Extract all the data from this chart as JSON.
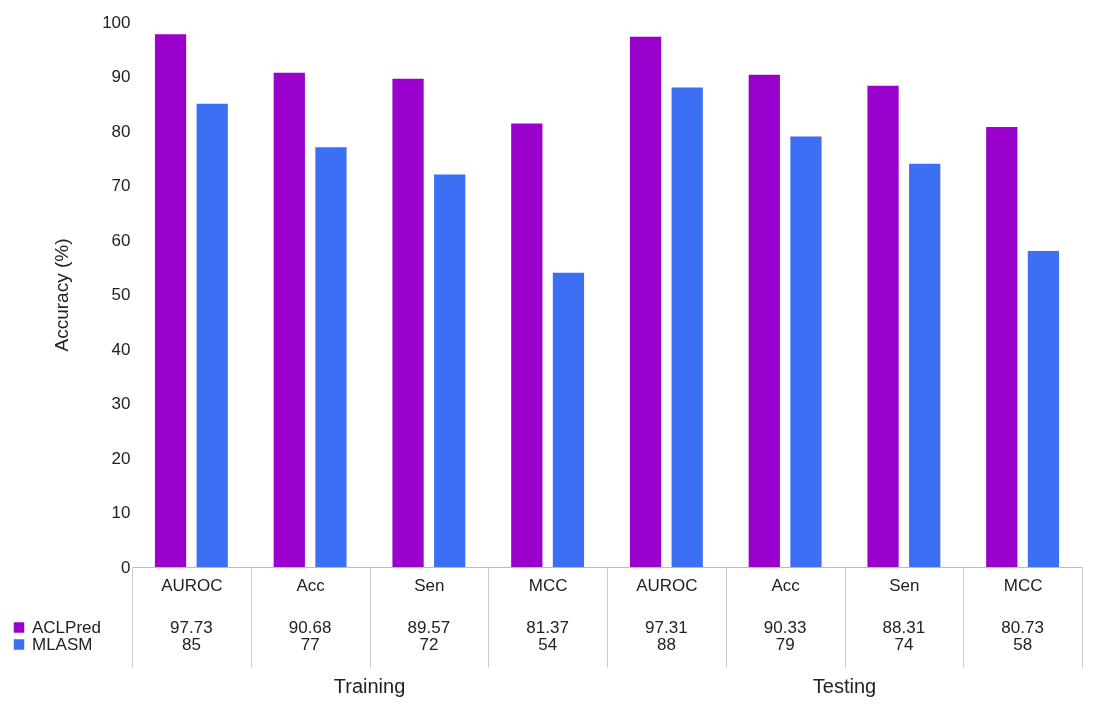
{
  "chart_data": {
    "type": "bar",
    "ylabel": "Accuracy (%)",
    "categories": [
      "AUROC",
      "Acc",
      "Sen",
      "MCC",
      "AUROC",
      "Acc",
      "Sen",
      "MCC"
    ],
    "series": [
      {
        "name": "ACLPred",
        "color": "#9900cc",
        "values": [
          97.73,
          90.68,
          89.57,
          81.37,
          97.31,
          90.33,
          88.31,
          80.73
        ]
      },
      {
        "name": "MLASM",
        "color": "#3d6ff5",
        "values": [
          85,
          77,
          72,
          54,
          88,
          79,
          74,
          58
        ]
      }
    ],
    "ylim": [
      0,
      100
    ],
    "yticks": [
      0,
      10,
      20,
      30,
      40,
      50,
      60,
      70,
      80,
      90,
      100
    ],
    "grid": false,
    "legend": "bottom left",
    "data_labels": true,
    "annotations": [
      "Training",
      "Testing"
    ]
  }
}
